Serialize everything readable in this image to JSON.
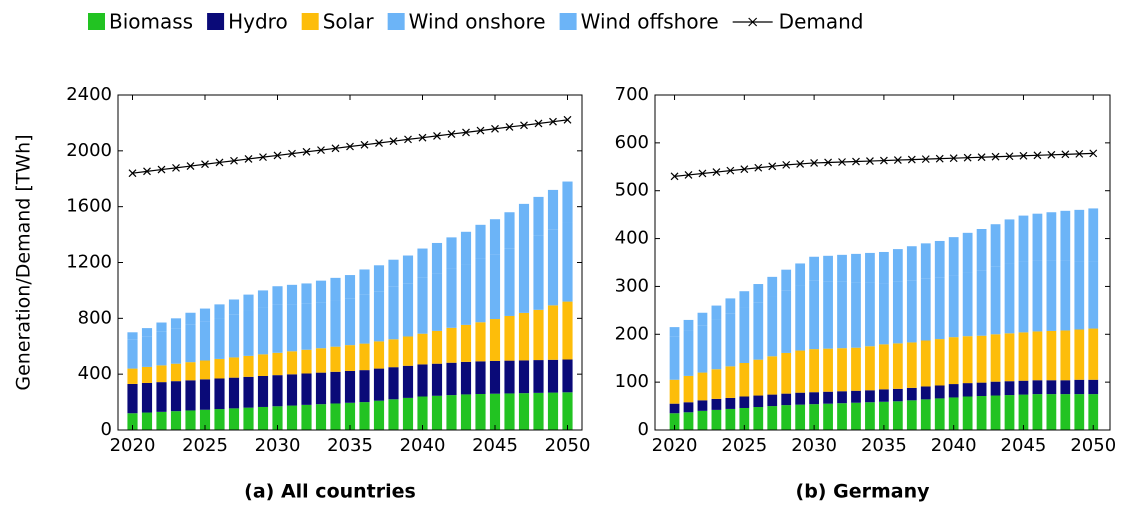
{
  "chart_data": [
    {
      "type": "bar",
      "stacked": true,
      "title": "(a) All countries",
      "ylabel": "Generation/Demand [TWh]",
      "x": [
        2020,
        2021,
        2022,
        2023,
        2024,
        2025,
        2026,
        2027,
        2028,
        2029,
        2030,
        2031,
        2032,
        2033,
        2034,
        2035,
        2036,
        2037,
        2038,
        2039,
        2040,
        2041,
        2042,
        2043,
        2044,
        2045,
        2046,
        2047,
        2048,
        2049,
        2050
      ],
      "xlim": [
        2019,
        2051
      ],
      "xticks": [
        2020,
        2025,
        2030,
        2035,
        2040,
        2045,
        2050
      ],
      "ylim": [
        0,
        2400
      ],
      "yticks": [
        0,
        400,
        800,
        1200,
        1600,
        2000,
        2400
      ],
      "series": [
        {
          "name": "Biomass",
          "color": "#22c322",
          "values": [
            120,
            125,
            130,
            135,
            140,
            145,
            150,
            155,
            160,
            165,
            170,
            175,
            180,
            185,
            190,
            195,
            200,
            210,
            220,
            230,
            240,
            245,
            250,
            255,
            258,
            260,
            262,
            264,
            266,
            268,
            270
          ]
        },
        {
          "name": "Hydro",
          "color": "#0a0a78",
          "values": [
            210,
            212,
            213,
            215,
            216,
            218,
            219,
            220,
            221,
            222,
            223,
            224,
            225,
            226,
            227,
            228,
            229,
            230,
            230,
            230,
            230,
            230,
            232,
            233,
            234,
            235,
            235,
            235,
            235,
            235,
            235
          ]
        },
        {
          "name": "Solar",
          "color": "#fdbd0a",
          "values": [
            110,
            115,
            120,
            125,
            130,
            135,
            140,
            145,
            150,
            155,
            160,
            165,
            170,
            175,
            180,
            185,
            190,
            195,
            200,
            210,
            220,
            235,
            250,
            265,
            280,
            300,
            320,
            340,
            360,
            390,
            415
          ]
        },
        {
          "name": "Wind onshore",
          "color": "#6cb4f7",
          "values": [
            210,
            220,
            241,
            251,
            272,
            282,
            293,
            309,
            325,
            336,
            347,
            338,
            329,
            330,
            331,
            332,
            353,
            359,
            376,
            378,
            400,
            412,
            422,
            433,
            456,
            465,
            485,
            515,
            535,
            545,
            570
          ]
        },
        {
          "name": "Wind offshore",
          "color": "#6cb4f7",
          "values": [
            50,
            58,
            66,
            74,
            82,
            90,
            98,
            106,
            114,
            122,
            130,
            138,
            146,
            154,
            162,
            170,
            178,
            186,
            194,
            202,
            210,
            218,
            226,
            234,
            242,
            250,
            258,
            266,
            274,
            282,
            290
          ]
        },
        {
          "name": "Demand",
          "color": "#000000",
          "type": "line",
          "values": [
            1840,
            1853,
            1866,
            1878,
            1891,
            1904,
            1917,
            1929,
            1942,
            1955,
            1967,
            1980,
            1993,
            2005,
            2018,
            2031,
            2043,
            2056,
            2069,
            2082,
            2094,
            2107,
            2120,
            2132,
            2145,
            2158,
            2171,
            2183,
            2196,
            2209,
            2222
          ]
        }
      ]
    },
    {
      "type": "bar",
      "stacked": true,
      "title": "(b) Germany",
      "x": [
        2020,
        2021,
        2022,
        2023,
        2024,
        2025,
        2026,
        2027,
        2028,
        2029,
        2030,
        2031,
        2032,
        2033,
        2034,
        2035,
        2036,
        2037,
        2038,
        2039,
        2040,
        2041,
        2042,
        2043,
        2044,
        2045,
        2046,
        2047,
        2048,
        2049,
        2050
      ],
      "xlim": [
        2018.6,
        2051.2
      ],
      "xticks": [
        2020,
        2025,
        2030,
        2035,
        2040,
        2045,
        2050
      ],
      "ylim": [
        0,
        700
      ],
      "yticks": [
        0,
        100,
        200,
        300,
        400,
        500,
        600,
        700
      ],
      "series": [
        {
          "color": "#22c322",
          "values": [
            35,
            37,
            40,
            42,
            44,
            46,
            48,
            50,
            52,
            53,
            54,
            55,
            56,
            57,
            58,
            59,
            60,
            62,
            64,
            66,
            68,
            70,
            71,
            72,
            73,
            74,
            75,
            75,
            75,
            75,
            75
          ]
        },
        {
          "color": "#0a0a78",
          "values": [
            20,
            21,
            22,
            23,
            23,
            24,
            24,
            24,
            24,
            25,
            25,
            25,
            25,
            25,
            25,
            26,
            26,
            26,
            27,
            27,
            28,
            28,
            28,
            29,
            29,
            29,
            29,
            29,
            29,
            30,
            30
          ]
        },
        {
          "color": "#fdbd0a",
          "values": [
            50,
            55,
            58,
            62,
            66,
            70,
            75,
            80,
            85,
            88,
            90,
            90,
            90,
            90,
            92,
            94,
            95,
            95,
            96,
            97,
            98,
            98,
            98,
            99,
            100,
            101,
            102,
            103,
            104,
            105,
            107
          ]
        },
        {
          "color": "#6cb4f7",
          "values": [
            90,
            94,
            99,
            104,
            110,
            115,
            120,
            125,
            130,
            135,
            143,
            141,
            139,
            137,
            133,
            128,
            129,
            130,
            129,
            128,
            129,
            133,
            137,
            141,
            146,
            149,
            148,
            147,
            146,
            143,
            141
          ]
        },
        {
          "color": "#6cb4f7",
          "values": [
            20,
            23,
            26,
            29,
            32,
            35,
            38,
            41,
            44,
            47,
            50,
            53,
            56,
            59,
            62,
            65,
            68,
            71,
            74,
            77,
            80,
            83,
            86,
            89,
            92,
            95,
            98,
            101,
            104,
            107,
            110
          ]
        },
        {
          "color": "#000000",
          "type": "line",
          "values": [
            530,
            533,
            536,
            539,
            542,
            545,
            548,
            551,
            554,
            556,
            558,
            559,
            560,
            561,
            562,
            563,
            564,
            565,
            566,
            567,
            568,
            569,
            570,
            571,
            572,
            573,
            574,
            575,
            576,
            577,
            578
          ]
        }
      ]
    }
  ]
}
